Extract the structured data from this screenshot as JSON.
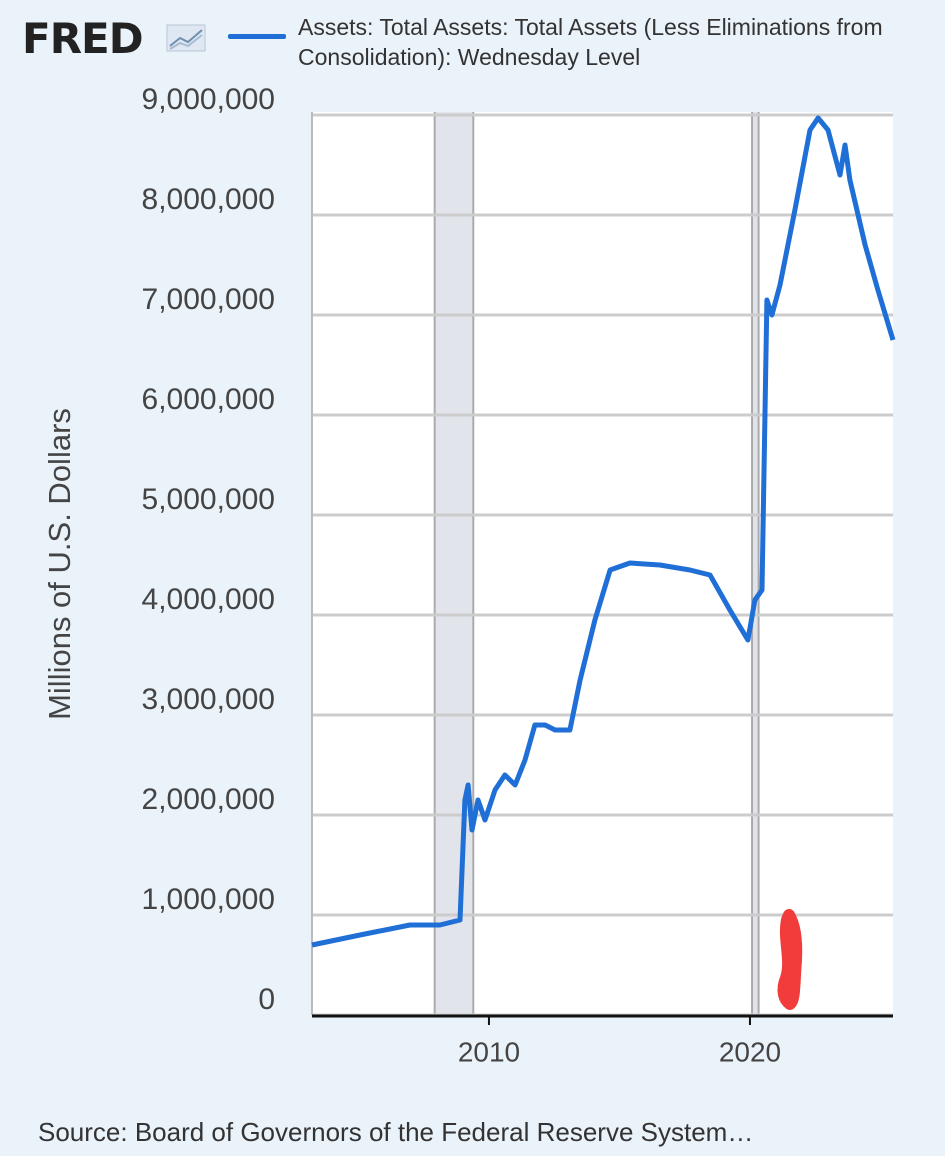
{
  "chart_data": {
    "type": "line",
    "logo": "FRED",
    "ylabel": "Millions of U.S. Dollars",
    "source": "Source: Board of Governors of the Federal Reserve System…",
    "xlim": [
      2003.22,
      2025.48
    ],
    "xticks": [
      2010,
      2020
    ],
    "ylim": [
      0,
      9000000
    ],
    "yticks": [
      0,
      {
        "value": 1000000,
        "label": "1,000,000"
      },
      {
        "value": 2000000,
        "label": "2,000,000"
      },
      {
        "value": 3000000,
        "label": "3,000,000"
      },
      {
        "value": 4000000,
        "label": "4,000,000"
      },
      {
        "value": 5000000,
        "label": "5,000,000"
      },
      {
        "value": 6000000,
        "label": "6,000,000"
      },
      {
        "value": 7000000,
        "label": "7,000,000"
      },
      {
        "value": 8000000,
        "label": "8,000,000"
      },
      {
        "value": 9000000,
        "label": "9,000,000"
      }
    ],
    "grid": true,
    "shading": [
      [
        2007.92,
        2009.4
      ],
      [
        2020.08,
        2020.33
      ]
    ],
    "x": [
      2003.22,
      2005.06,
      2006.97,
      2008.12,
      2008.89,
      2009.08,
      2009.2,
      2009.35,
      2009.58,
      2009.85,
      2010.23,
      2010.61,
      2011.0,
      2011.38,
      2011.76,
      2012.15,
      2012.53,
      2013.1,
      2013.49,
      2014.06,
      2014.64,
      2015.4,
      2016.55,
      2017.7,
      2018.47,
      2019.23,
      2019.92,
      2020.19,
      2020.46,
      2020.65,
      2020.84,
      2021.15,
      2021.72,
      2022.3,
      2022.61,
      2022.99,
      2023.45,
      2023.64,
      2023.83,
      2024.41,
      2024.9,
      2025.48
    ],
    "series": [
      {
        "name": "Assets: Total Assets: Total Assets (Less Eliminations from Consolidation): Wednesday Level",
        "color": "#1f6fd6",
        "values": [
          700000,
          800000,
          900000,
          900000,
          950000,
          2150000,
          2300000,
          1850000,
          2150000,
          1950000,
          2250000,
          2400000,
          2300000,
          2550000,
          2900000,
          2900000,
          2850000,
          2850000,
          3350000,
          3950000,
          4450000,
          4520000,
          4500000,
          4450000,
          4400000,
          4050000,
          3750000,
          4150000,
          4250000,
          7150000,
          7000000,
          7300000,
          8050000,
          8850000,
          8970000,
          8850000,
          8400000,
          8700000,
          8350000,
          7700000,
          7250000,
          6750000
        ]
      }
    ]
  }
}
